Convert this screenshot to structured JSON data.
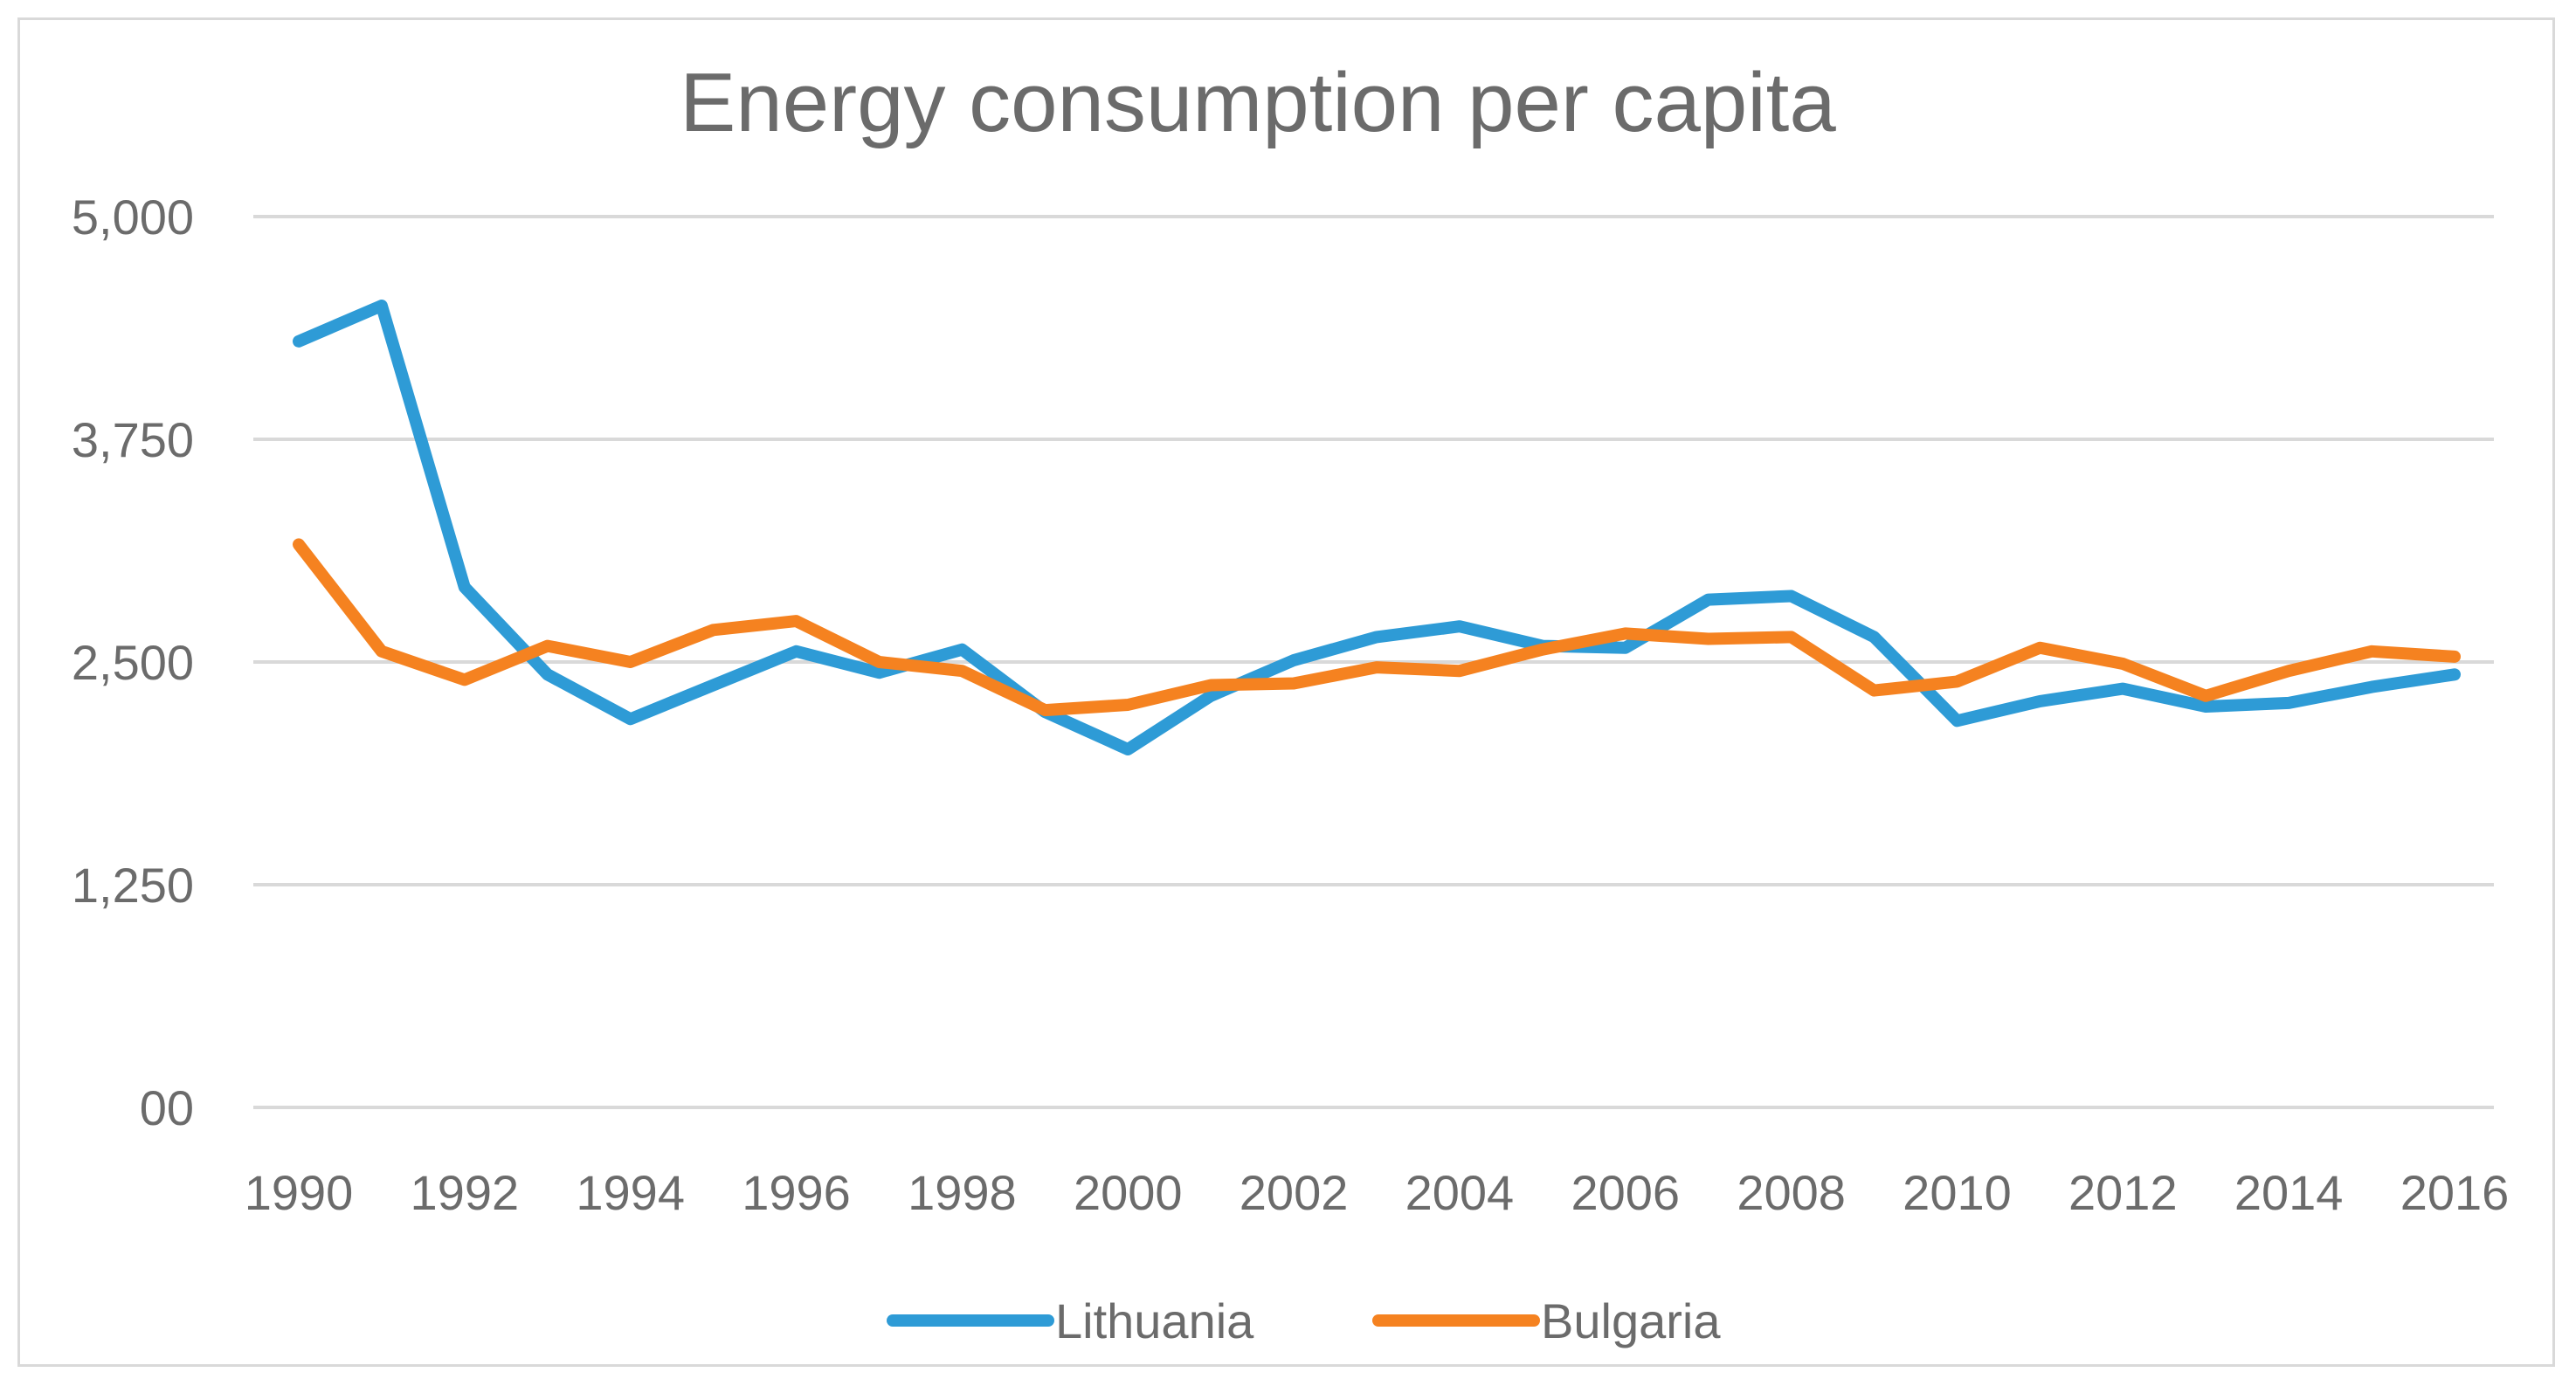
{
  "chart_data": {
    "type": "line",
    "title": "Energy consumption per capita",
    "xlabel": "",
    "ylabel": "",
    "ylim": [
      0,
      5000
    ],
    "y_ticks": [
      0,
      1250,
      2500,
      3750,
      5000
    ],
    "y_tick_labels": [
      "00",
      "1,250",
      "2,500",
      "3,750",
      "5,000"
    ],
    "x": [
      1990,
      1991,
      1992,
      1993,
      1994,
      1995,
      1996,
      1997,
      1998,
      1999,
      2000,
      2001,
      2002,
      2003,
      2004,
      2005,
      2006,
      2007,
      2008,
      2009,
      2010,
      2011,
      2012,
      2013,
      2014,
      2015,
      2016
    ],
    "x_tick_labels": [
      "1990",
      "1992",
      "1994",
      "1996",
      "1998",
      "2000",
      "2002",
      "2004",
      "2006",
      "2008",
      "2010",
      "2012",
      "2014",
      "2016"
    ],
    "grid": true,
    "legend_position": "bottom",
    "series": [
      {
        "name": "Lithuania",
        "color": "#2e9bd6",
        "values": [
          4300,
          4500,
          2920,
          2430,
          2180,
          2370,
          2560,
          2440,
          2570,
          2220,
          2010,
          2310,
          2510,
          2640,
          2700,
          2590,
          2580,
          2850,
          2870,
          2640,
          2170,
          2280,
          2350,
          2250,
          2270,
          2360,
          2430
        ]
      },
      {
        "name": "Bulgaria",
        "color": "#f58220",
        "values": [
          3160,
          2560,
          2400,
          2590,
          2500,
          2680,
          2730,
          2500,
          2450,
          2230,
          2260,
          2370,
          2380,
          2470,
          2450,
          2570,
          2660,
          2630,
          2640,
          2340,
          2390,
          2580,
          2490,
          2310,
          2450,
          2560,
          2530
        ]
      }
    ]
  }
}
